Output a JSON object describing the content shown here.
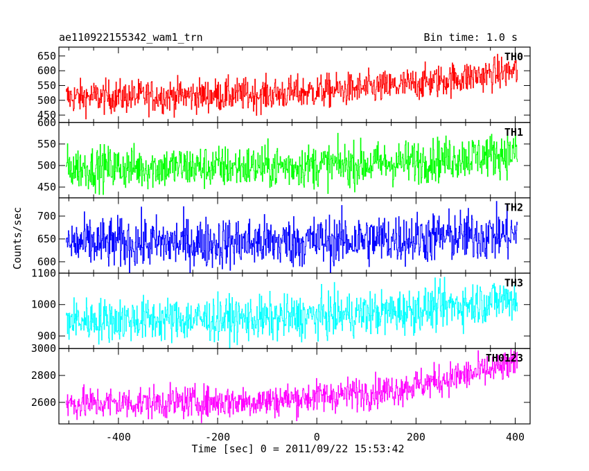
{
  "header": {
    "title": "ae110922155342_wam1_trn",
    "bin_time": "Bin time: 1.0 s"
  },
  "axes": {
    "xlabel": "Time [sec] 0 = 2011/09/22 15:53:42",
    "ylabel": "Counts/sec"
  },
  "chart_data": {
    "type": "line",
    "title": "ae110922155342_wam1_trn",
    "xlabel": "Time [sec] 0 = 2011/09/22 15:53:42",
    "ylabel": "Counts/sec",
    "xlim": [
      -520,
      430
    ],
    "x_ticks": [
      -400,
      -200,
      0,
      200,
      400
    ],
    "x_range_data": [
      -505,
      405
    ],
    "bin_time_s": 1.0,
    "series": [
      {
        "name": "TH0",
        "color": "#ff0000",
        "ylim": [
          425,
          680
        ],
        "y_ticks": [
          450,
          500,
          550,
          600,
          650
        ],
        "mean_trend": [
          [
            -505,
            510
          ],
          [
            -100,
            520
          ],
          [
            150,
            545
          ],
          [
            405,
            600
          ]
        ],
        "noise": 28
      },
      {
        "name": "TH1",
        "color": "#00ff00",
        "ylim": [
          425,
          600
        ],
        "y_ticks": [
          450,
          500,
          550,
          600
        ],
        "mean_trend": [
          [
            -505,
            495
          ],
          [
            -100,
            497
          ],
          [
            150,
            505
          ],
          [
            405,
            530
          ]
        ],
        "noise": 25
      },
      {
        "name": "TH2",
        "color": "#0000ff",
        "ylim": [
          575,
          740
        ],
        "y_ticks": [
          600,
          650,
          700
        ],
        "mean_trend": [
          [
            -505,
            640
          ],
          [
            -100,
            642
          ],
          [
            150,
            650
          ],
          [
            405,
            660
          ]
        ],
        "noise": 28
      },
      {
        "name": "TH3",
        "color": "#00ffff",
        "ylim": [
          860,
          1100
        ],
        "y_ticks": [
          900,
          1000,
          1100
        ],
        "mean_trend": [
          [
            -505,
            950
          ],
          [
            -100,
            955
          ],
          [
            150,
            975
          ],
          [
            405,
            1020
          ]
        ],
        "noise": 35
      },
      {
        "name": "TH0123",
        "color": "#ff00ff",
        "ylim": [
          2440,
          3000
        ],
        "y_ticks": [
          2600,
          2800,
          3000
        ],
        "mean_trend": [
          [
            -505,
            2590
          ],
          [
            -100,
            2610
          ],
          [
            150,
            2690
          ],
          [
            405,
            2880
          ]
        ],
        "noise": 60
      }
    ]
  }
}
